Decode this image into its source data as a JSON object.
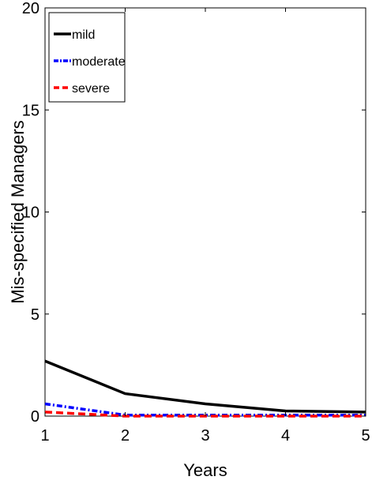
{
  "chart_data": {
    "type": "line",
    "xlabel": "Years",
    "ylabel": "Mis-specified Managers",
    "xlim": [
      1,
      5
    ],
    "ylim": [
      0,
      20
    ],
    "xticks": [
      1,
      2,
      3,
      4,
      5
    ],
    "yticks": [
      0,
      5,
      10,
      15,
      20
    ],
    "grid": false,
    "legend_position": "top-left",
    "x": [
      1,
      2,
      3,
      4,
      5
    ],
    "series": [
      {
        "name": "mild",
        "values": [
          2.7,
          1.1,
          0.6,
          0.25,
          0.2
        ],
        "color": "#000000",
        "style": "solid"
      },
      {
        "name": "moderate",
        "values": [
          0.6,
          0.05,
          0.05,
          0.05,
          0.05
        ],
        "color": "#0000ff",
        "style": "dashdot"
      },
      {
        "name": "severe",
        "values": [
          0.2,
          0.0,
          0.0,
          0.0,
          0.0
        ],
        "color": "#ff0000",
        "style": "dashed"
      }
    ]
  }
}
